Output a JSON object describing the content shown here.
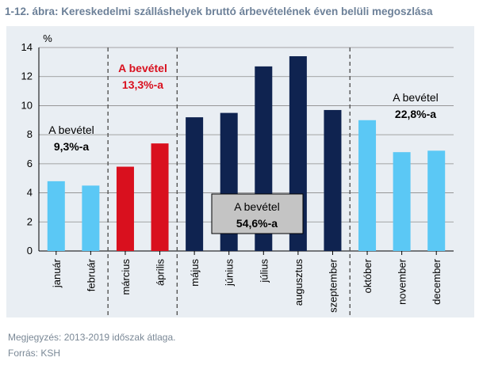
{
  "title": "1-12. ábra: Kereskedelmi szálláshelyek bruttó árbevételének éven belüli megoszlása",
  "notes": {
    "megjegyzes": "Megjegyzés: 2013-2019 időszak átlaga.",
    "forras": "Forrás: KSH"
  },
  "colors": {
    "light_blue": "#5bc8f5",
    "red": "#d9101e",
    "navy": "#0f2350",
    "panel": "#e9eef3",
    "gray_box": "#c4c4c4"
  },
  "chart_data": {
    "type": "bar",
    "ylabel": "%",
    "ylim": [
      0,
      14
    ],
    "yticks": [
      0,
      2,
      4,
      6,
      8,
      10,
      12,
      14
    ],
    "grid": true,
    "categories": [
      "január",
      "február",
      "március",
      "április",
      "május",
      "június",
      "július",
      "augusztus",
      "szeptember",
      "október",
      "november",
      "december"
    ],
    "values": [
      4.8,
      4.5,
      5.8,
      7.4,
      9.2,
      9.5,
      12.7,
      13.4,
      9.7,
      9.0,
      6.8,
      6.9
    ],
    "groups": [
      {
        "months": [
          0,
          1
        ],
        "color": "#5bc8f5",
        "label_line1": "A bevétel",
        "label_line2": "9,3%-a",
        "label_color": "#000000"
      },
      {
        "months": [
          2,
          3
        ],
        "color": "#d9101e",
        "label_line1": "A bevétel",
        "label_line2": "13,3%-a",
        "label_color": "#d9101e"
      },
      {
        "months": [
          4,
          5,
          6,
          7,
          8
        ],
        "color": "#0f2350",
        "label_line1": "A bevétel",
        "label_line2": "54,6%-a",
        "label_color": "#000000"
      },
      {
        "months": [
          9,
          10,
          11
        ],
        "color": "#5bc8f5",
        "label_line1": "A bevétel",
        "label_line2": "22,8%-a",
        "label_color": "#000000"
      }
    ]
  }
}
